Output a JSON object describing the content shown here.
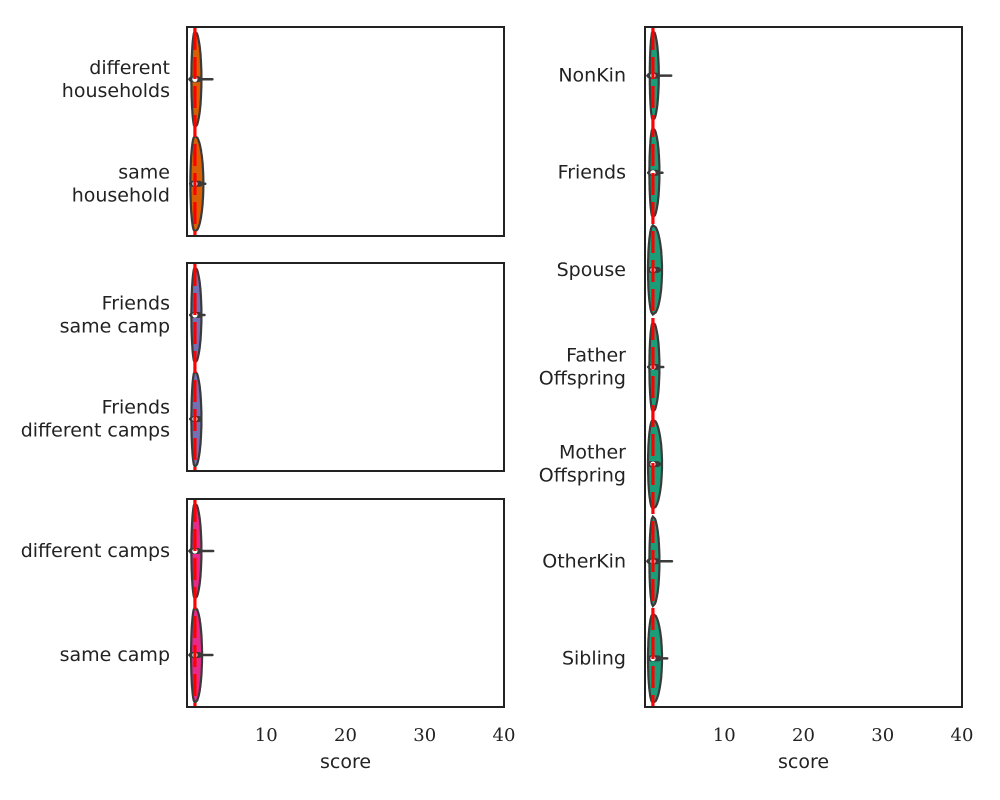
{
  "chart_data": [
    {
      "type": "violin",
      "panel": "left-top",
      "categories": [
        "different\nhouseholds",
        "same\nhousehold"
      ],
      "violins": [
        {
          "category": "different\nhouseholds",
          "median": 1.0,
          "q1": 0.6,
          "q3": 1.4,
          "whisker_low": 0.3,
          "whisker_high": 3.2,
          "min": 0.2,
          "max": 3.4,
          "max_width": 1.0,
          "color": "#d95f02"
        },
        {
          "category": "same\nhousehold",
          "median": 1.0,
          "q1": 0.7,
          "q3": 1.6,
          "whisker_low": 0.4,
          "whisker_high": 2.3,
          "min": 0.3,
          "max": 2.5,
          "max_width": 1.3,
          "color": "#d95f02"
        }
      ],
      "xlim": [
        0,
        40
      ],
      "reference_line_x": 1.0,
      "reference_line_color": "#ff0000",
      "xticks": [],
      "xlabel": ""
    },
    {
      "type": "violin",
      "panel": "left-middle",
      "categories": [
        "Friends\nsame camp",
        "Friends\ndifferent camps"
      ],
      "violins": [
        {
          "category": "Friends\nsame camp",
          "median": 1.0,
          "q1": 0.7,
          "q3": 1.5,
          "whisker_low": 0.4,
          "whisker_high": 2.2,
          "min": 0.3,
          "max": 2.3,
          "max_width": 1.0,
          "color": "#7570b3"
        },
        {
          "category": "Friends\ndifferent camps",
          "median": 1.0,
          "q1": 0.7,
          "q3": 1.5,
          "whisker_low": 0.4,
          "whisker_high": 1.8,
          "min": 0.3,
          "max": 2.0,
          "max_width": 1.0,
          "color": "#7570b3"
        }
      ],
      "xlim": [
        0,
        40
      ],
      "reference_line_x": 1.0,
      "reference_line_color": "#ff0000",
      "xticks": [],
      "xlabel": ""
    },
    {
      "type": "violin",
      "panel": "left-bottom",
      "categories": [
        "different camps",
        "same camp"
      ],
      "violins": [
        {
          "category": "different camps",
          "median": 1.0,
          "q1": 0.6,
          "q3": 1.4,
          "whisker_low": 0.3,
          "whisker_high": 3.3,
          "min": 0.2,
          "max": 3.6,
          "max_width": 1.0,
          "color": "#e7298a"
        },
        {
          "category": "same camp",
          "median": 1.0,
          "q1": 0.6,
          "q3": 1.5,
          "whisker_low": 0.3,
          "whisker_high": 3.2,
          "min": 0.2,
          "max": 3.5,
          "max_width": 1.1,
          "color": "#e7298a"
        }
      ],
      "xlim": [
        0,
        40
      ],
      "reference_line_x": 1.0,
      "reference_line_color": "#ff0000",
      "xticks": [
        "10",
        "20",
        "30",
        "40"
      ],
      "xlabel": "score"
    },
    {
      "type": "violin",
      "panel": "right",
      "categories": [
        "NonKin",
        "Friends",
        "Spouse",
        "Father\nOffspring",
        "Mother\nOffspring",
        "OtherKin",
        "Sibling"
      ],
      "violins": [
        {
          "category": "NonKin",
          "median": 1.0,
          "q1": 0.6,
          "q3": 1.4,
          "whisker_low": 0.3,
          "whisker_high": 3.3,
          "min": 0.2,
          "max": 3.6,
          "max_width": 0.9,
          "color": "#1b9e77"
        },
        {
          "category": "Friends",
          "median": 1.0,
          "q1": 0.7,
          "q3": 1.5,
          "whisker_low": 0.4,
          "whisker_high": 2.2,
          "min": 0.3,
          "max": 2.4,
          "max_width": 1.0,
          "color": "#1b9e77"
        },
        {
          "category": "Spouse",
          "median": 1.0,
          "q1": 0.7,
          "q3": 1.6,
          "whisker_low": 0.4,
          "whisker_high": 2.1,
          "min": 0.3,
          "max": 2.5,
          "max_width": 1.4,
          "color": "#1b9e77"
        },
        {
          "category": "Father\nOffspring",
          "median": 1.0,
          "q1": 0.7,
          "q3": 1.5,
          "whisker_low": 0.4,
          "whisker_high": 2.3,
          "min": 0.3,
          "max": 2.5,
          "max_width": 1.0,
          "color": "#1b9e77"
        },
        {
          "category": "Mother\nOffspring",
          "median": 1.0,
          "q1": 0.7,
          "q3": 1.6,
          "whisker_low": 0.4,
          "whisker_high": 2.1,
          "min": 0.3,
          "max": 2.6,
          "max_width": 1.4,
          "color": "#1b9e77"
        },
        {
          "category": "OtherKin",
          "median": 1.0,
          "q1": 0.6,
          "q3": 1.5,
          "whisker_low": 0.3,
          "whisker_high": 3.4,
          "min": 0.2,
          "max": 3.6,
          "max_width": 1.0,
          "color": "#1b9e77"
        },
        {
          "category": "Sibling",
          "median": 1.0,
          "q1": 0.7,
          "q3": 1.7,
          "whisker_low": 0.4,
          "whisker_high": 2.8,
          "min": 0.3,
          "max": 3.0,
          "max_width": 1.4,
          "color": "#1b9e77"
        }
      ],
      "xlim": [
        0,
        40
      ],
      "reference_line_x": 1.0,
      "reference_line_color": "#ff0000",
      "xticks": [
        "10",
        "20",
        "30",
        "40"
      ],
      "xlabel": "score"
    }
  ]
}
